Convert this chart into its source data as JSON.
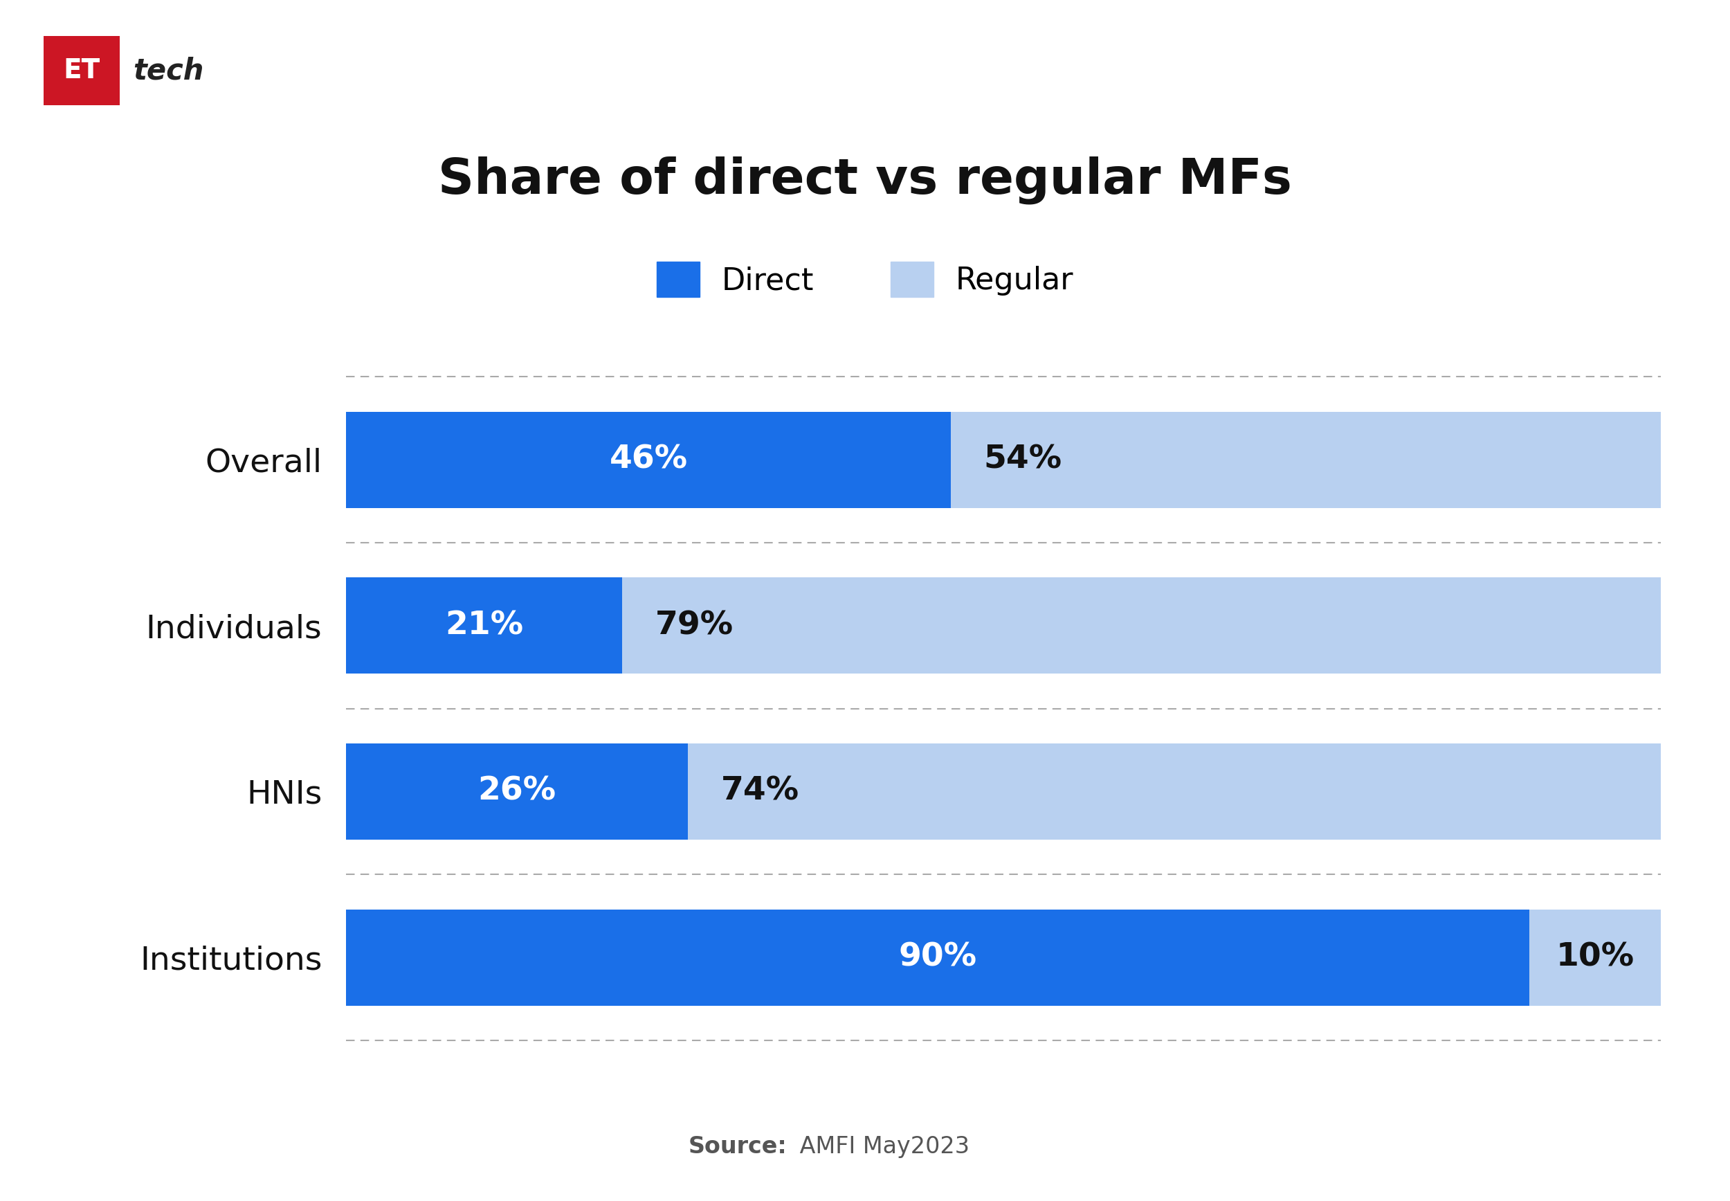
{
  "title": "Share of direct vs regular MFs",
  "categories": [
    "Overall",
    "Individuals",
    "HNIs",
    "Institutions"
  ],
  "direct_values": [
    46,
    21,
    26,
    90
  ],
  "regular_values": [
    54,
    79,
    74,
    10
  ],
  "direct_color": "#1a6fe8",
  "regular_color": "#b8d0f0",
  "direct_label": "Direct",
  "regular_label": "Regular",
  "title_fontsize": 52,
  "legend_fontsize": 32,
  "bar_label_fontsize": 34,
  "category_fontsize": 34,
  "source_bold": "Source:",
  "source_normal": " AMFI May2023",
  "background_color": "#ffffff",
  "bar_height": 0.58,
  "grid_color": "#aaaaaa",
  "label_color_white": "#ffffff",
  "label_color_dark": "#111111"
}
